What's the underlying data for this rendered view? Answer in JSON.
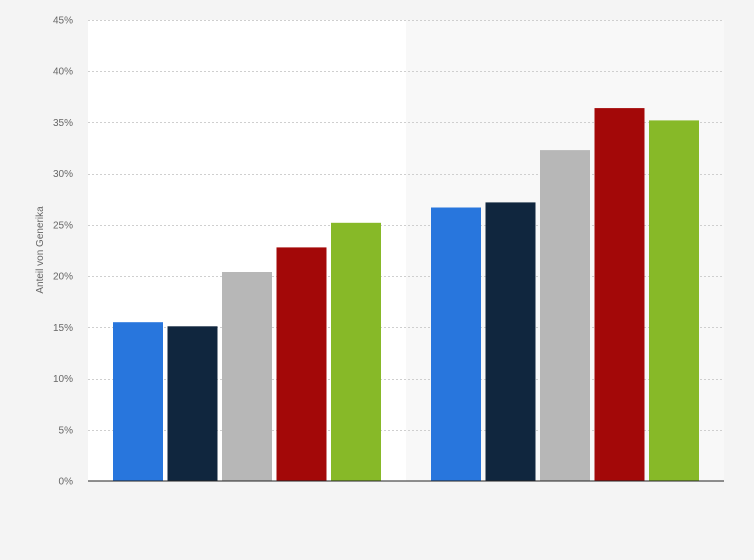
{
  "chart_data": {
    "type": "bar",
    "title": "",
    "xlabel": "",
    "ylabel": "Anteil von Generika",
    "categories": [
      "",
      ""
    ],
    "series": [
      {
        "values": [
          15.5,
          26.7
        ],
        "color": "#2876dd"
      },
      {
        "values": [
          15.1,
          27.2
        ],
        "color": "#10263e"
      },
      {
        "values": [
          20.4,
          32.3
        ],
        "color": "#b7b7b7"
      },
      {
        "values": [
          22.8,
          36.4
        ],
        "color": "#a30808"
      },
      {
        "values": [
          25.2,
          35.2
        ],
        "color": "#87b928"
      }
    ],
    "ylim": [
      0,
      45
    ],
    "yticks": [
      0,
      5,
      10,
      15,
      20,
      25,
      30,
      35,
      40,
      45
    ],
    "ytick_labels": [
      "0%",
      "5%",
      "10%",
      "15%",
      "20%",
      "25%",
      "30%",
      "35%",
      "40%",
      "45%"
    ],
    "grid": true,
    "legend": "none"
  }
}
